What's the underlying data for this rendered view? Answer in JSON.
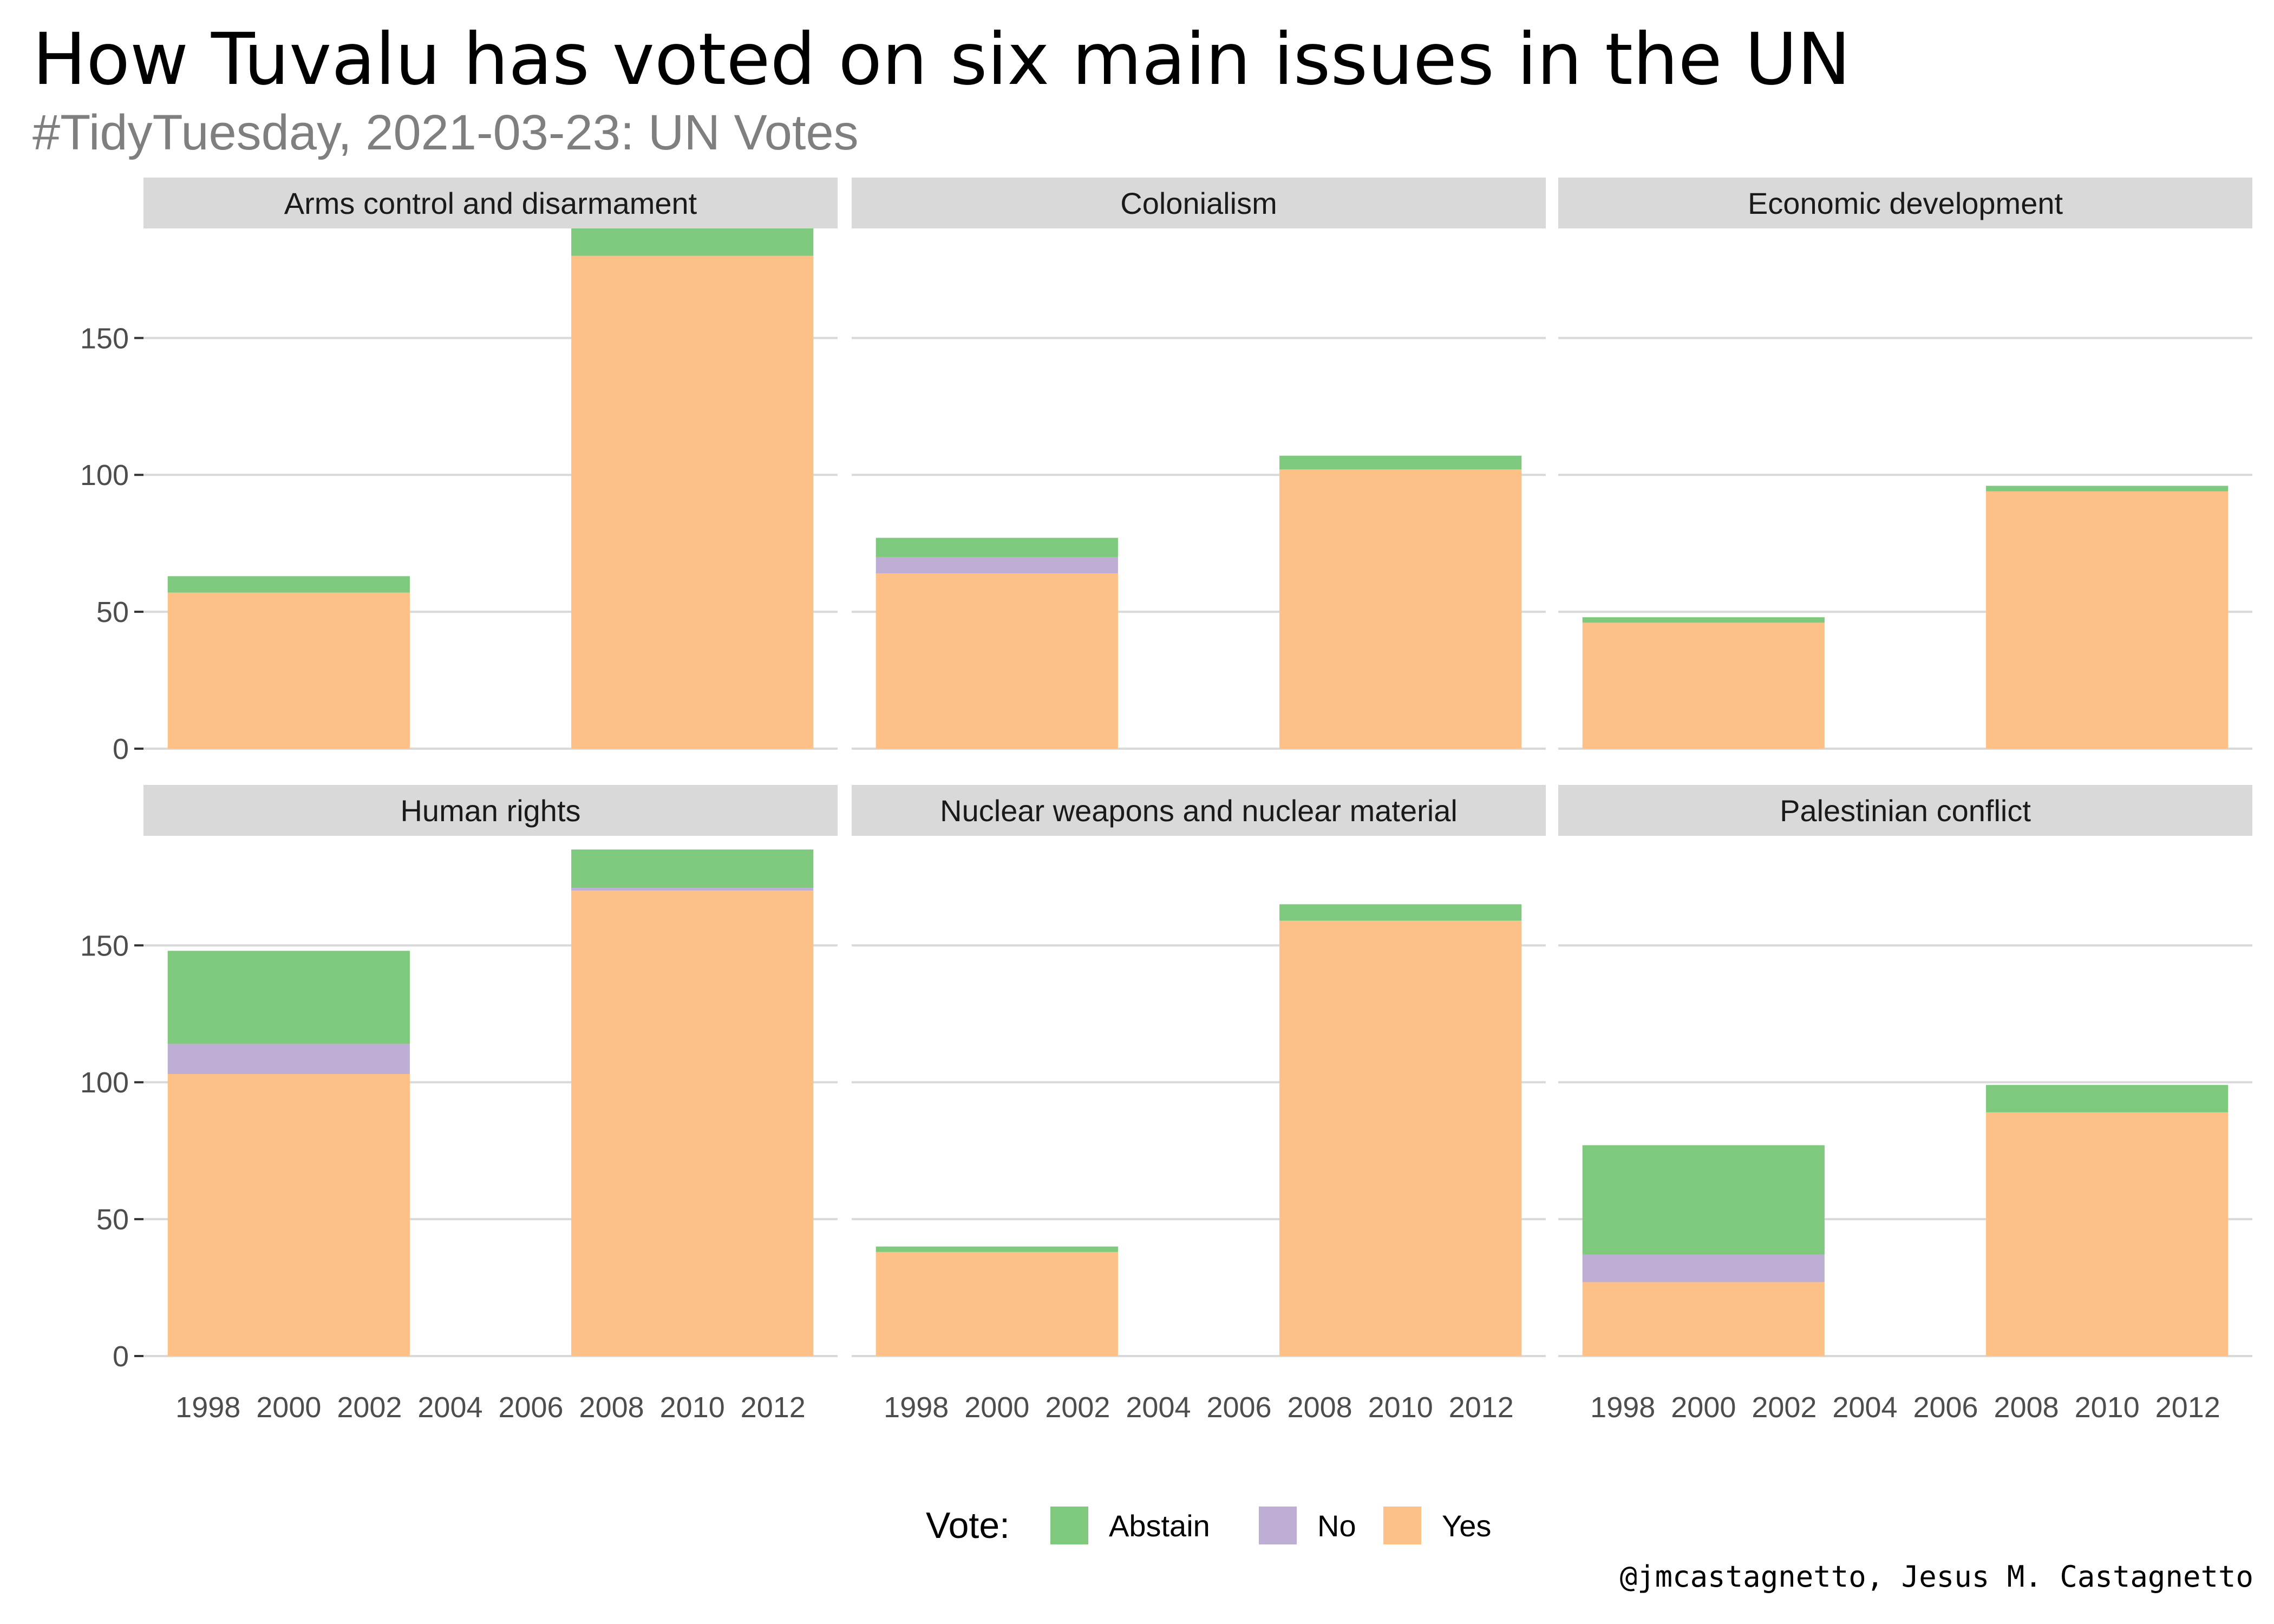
{
  "title": "How Tuvalu has voted on six main issues in the UN",
  "subtitle": "#TidyTuesday, 2021-03-23: UN Votes",
  "caption": "@jmcastagnetto, Jesus M. Castagnetto",
  "chart_data": {
    "type": "bar",
    "stacked": true,
    "facet_layout": {
      "rows": 2,
      "cols": 3
    },
    "xlabel": "",
    "ylabel": "",
    "x_ticks": [
      1998,
      2000,
      2002,
      2004,
      2006,
      2008,
      2010,
      2012
    ],
    "xlim": [
      1996.4,
      2013.6
    ],
    "y_ticks": [
      0,
      50,
      100,
      150
    ],
    "ylim": [
      0,
      190
    ],
    "bar_width_years": 6,
    "grid": "horizontal",
    "legend": {
      "title": "Vote:",
      "position": "bottom",
      "entries": [
        {
          "name": "Abstain",
          "color": "#7fc97f"
        },
        {
          "name": "No",
          "color": "#beaed4"
        },
        {
          "name": "Yes",
          "color": "#fdc086"
        }
      ]
    },
    "stack_order": [
      "Yes",
      "No",
      "Abstain"
    ],
    "panels": [
      {
        "name": "Arms control and disarmament",
        "bars": [
          {
            "x": 2000,
            "Yes": 57,
            "No": 0,
            "Abstain": 6
          },
          {
            "x": 2010,
            "Yes": 180,
            "No": 0,
            "Abstain": 10
          }
        ]
      },
      {
        "name": "Colonialism",
        "bars": [
          {
            "x": 2000,
            "Yes": 64,
            "No": 6,
            "Abstain": 7
          },
          {
            "x": 2010,
            "Yes": 102,
            "No": 0,
            "Abstain": 5
          }
        ]
      },
      {
        "name": "Economic development",
        "bars": [
          {
            "x": 2000,
            "Yes": 46,
            "No": 0,
            "Abstain": 2
          },
          {
            "x": 2010,
            "Yes": 94,
            "No": 0,
            "Abstain": 2
          }
        ]
      },
      {
        "name": "Human rights",
        "bars": [
          {
            "x": 2000,
            "Yes": 103,
            "No": 11,
            "Abstain": 34
          },
          {
            "x": 2010,
            "Yes": 170,
            "No": 1,
            "Abstain": 14
          }
        ]
      },
      {
        "name": "Nuclear weapons and nuclear material",
        "bars": [
          {
            "x": 2000,
            "Yes": 38,
            "No": 0,
            "Abstain": 2
          },
          {
            "x": 2010,
            "Yes": 159,
            "No": 0,
            "Abstain": 6
          }
        ]
      },
      {
        "name": "Palestinian conflict",
        "bars": [
          {
            "x": 2000,
            "Yes": 27,
            "No": 10,
            "Abstain": 40
          },
          {
            "x": 2010,
            "Yes": 89,
            "No": 0,
            "Abstain": 10
          }
        ]
      }
    ]
  }
}
